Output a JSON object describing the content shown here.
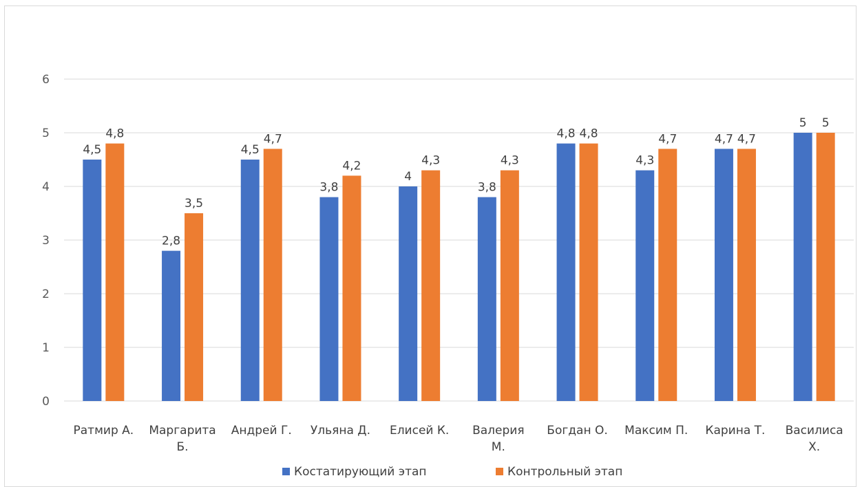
{
  "chart_data": {
    "type": "bar",
    "categories": [
      [
        "Ратмир А."
      ],
      [
        "Маргарита",
        "Б."
      ],
      [
        "Андрей Г."
      ],
      [
        "Ульяна Д."
      ],
      [
        "Елисей К."
      ],
      [
        "Валерия",
        "М."
      ],
      [
        "Богдан О."
      ],
      [
        "Максим П."
      ],
      [
        "Карина Т."
      ],
      [
        "Василиса",
        "Х."
      ]
    ],
    "series": [
      {
        "name": "Костатирующий этап",
        "color": "#4472c4",
        "values": [
          4.5,
          2.8,
          4.5,
          3.8,
          4,
          3.8,
          4.8,
          4.3,
          4.7,
          5
        ],
        "labels": [
          "4,5",
          "2,8",
          "4,5",
          "3,8",
          "4",
          "3,8",
          "4,8",
          "4,3",
          "4,7",
          "5"
        ]
      },
      {
        "name": "Контрольный этап",
        "color": "#ed7d31",
        "values": [
          4.8,
          3.5,
          4.7,
          4.2,
          4.3,
          4.3,
          4.8,
          4.7,
          4.7,
          5
        ],
        "labels": [
          "4,8",
          "3,5",
          "4,7",
          "4,2",
          "4,3",
          "4,3",
          "4,8",
          "4,7",
          "4,7",
          "5"
        ]
      }
    ],
    "yticks": [
      "0",
      "1",
      "2",
      "3",
      "4",
      "5",
      "6"
    ],
    "ylim": [
      0,
      6
    ],
    "grid": true,
    "legend": "bottom",
    "title": "",
    "xlabel": "",
    "ylabel": ""
  }
}
